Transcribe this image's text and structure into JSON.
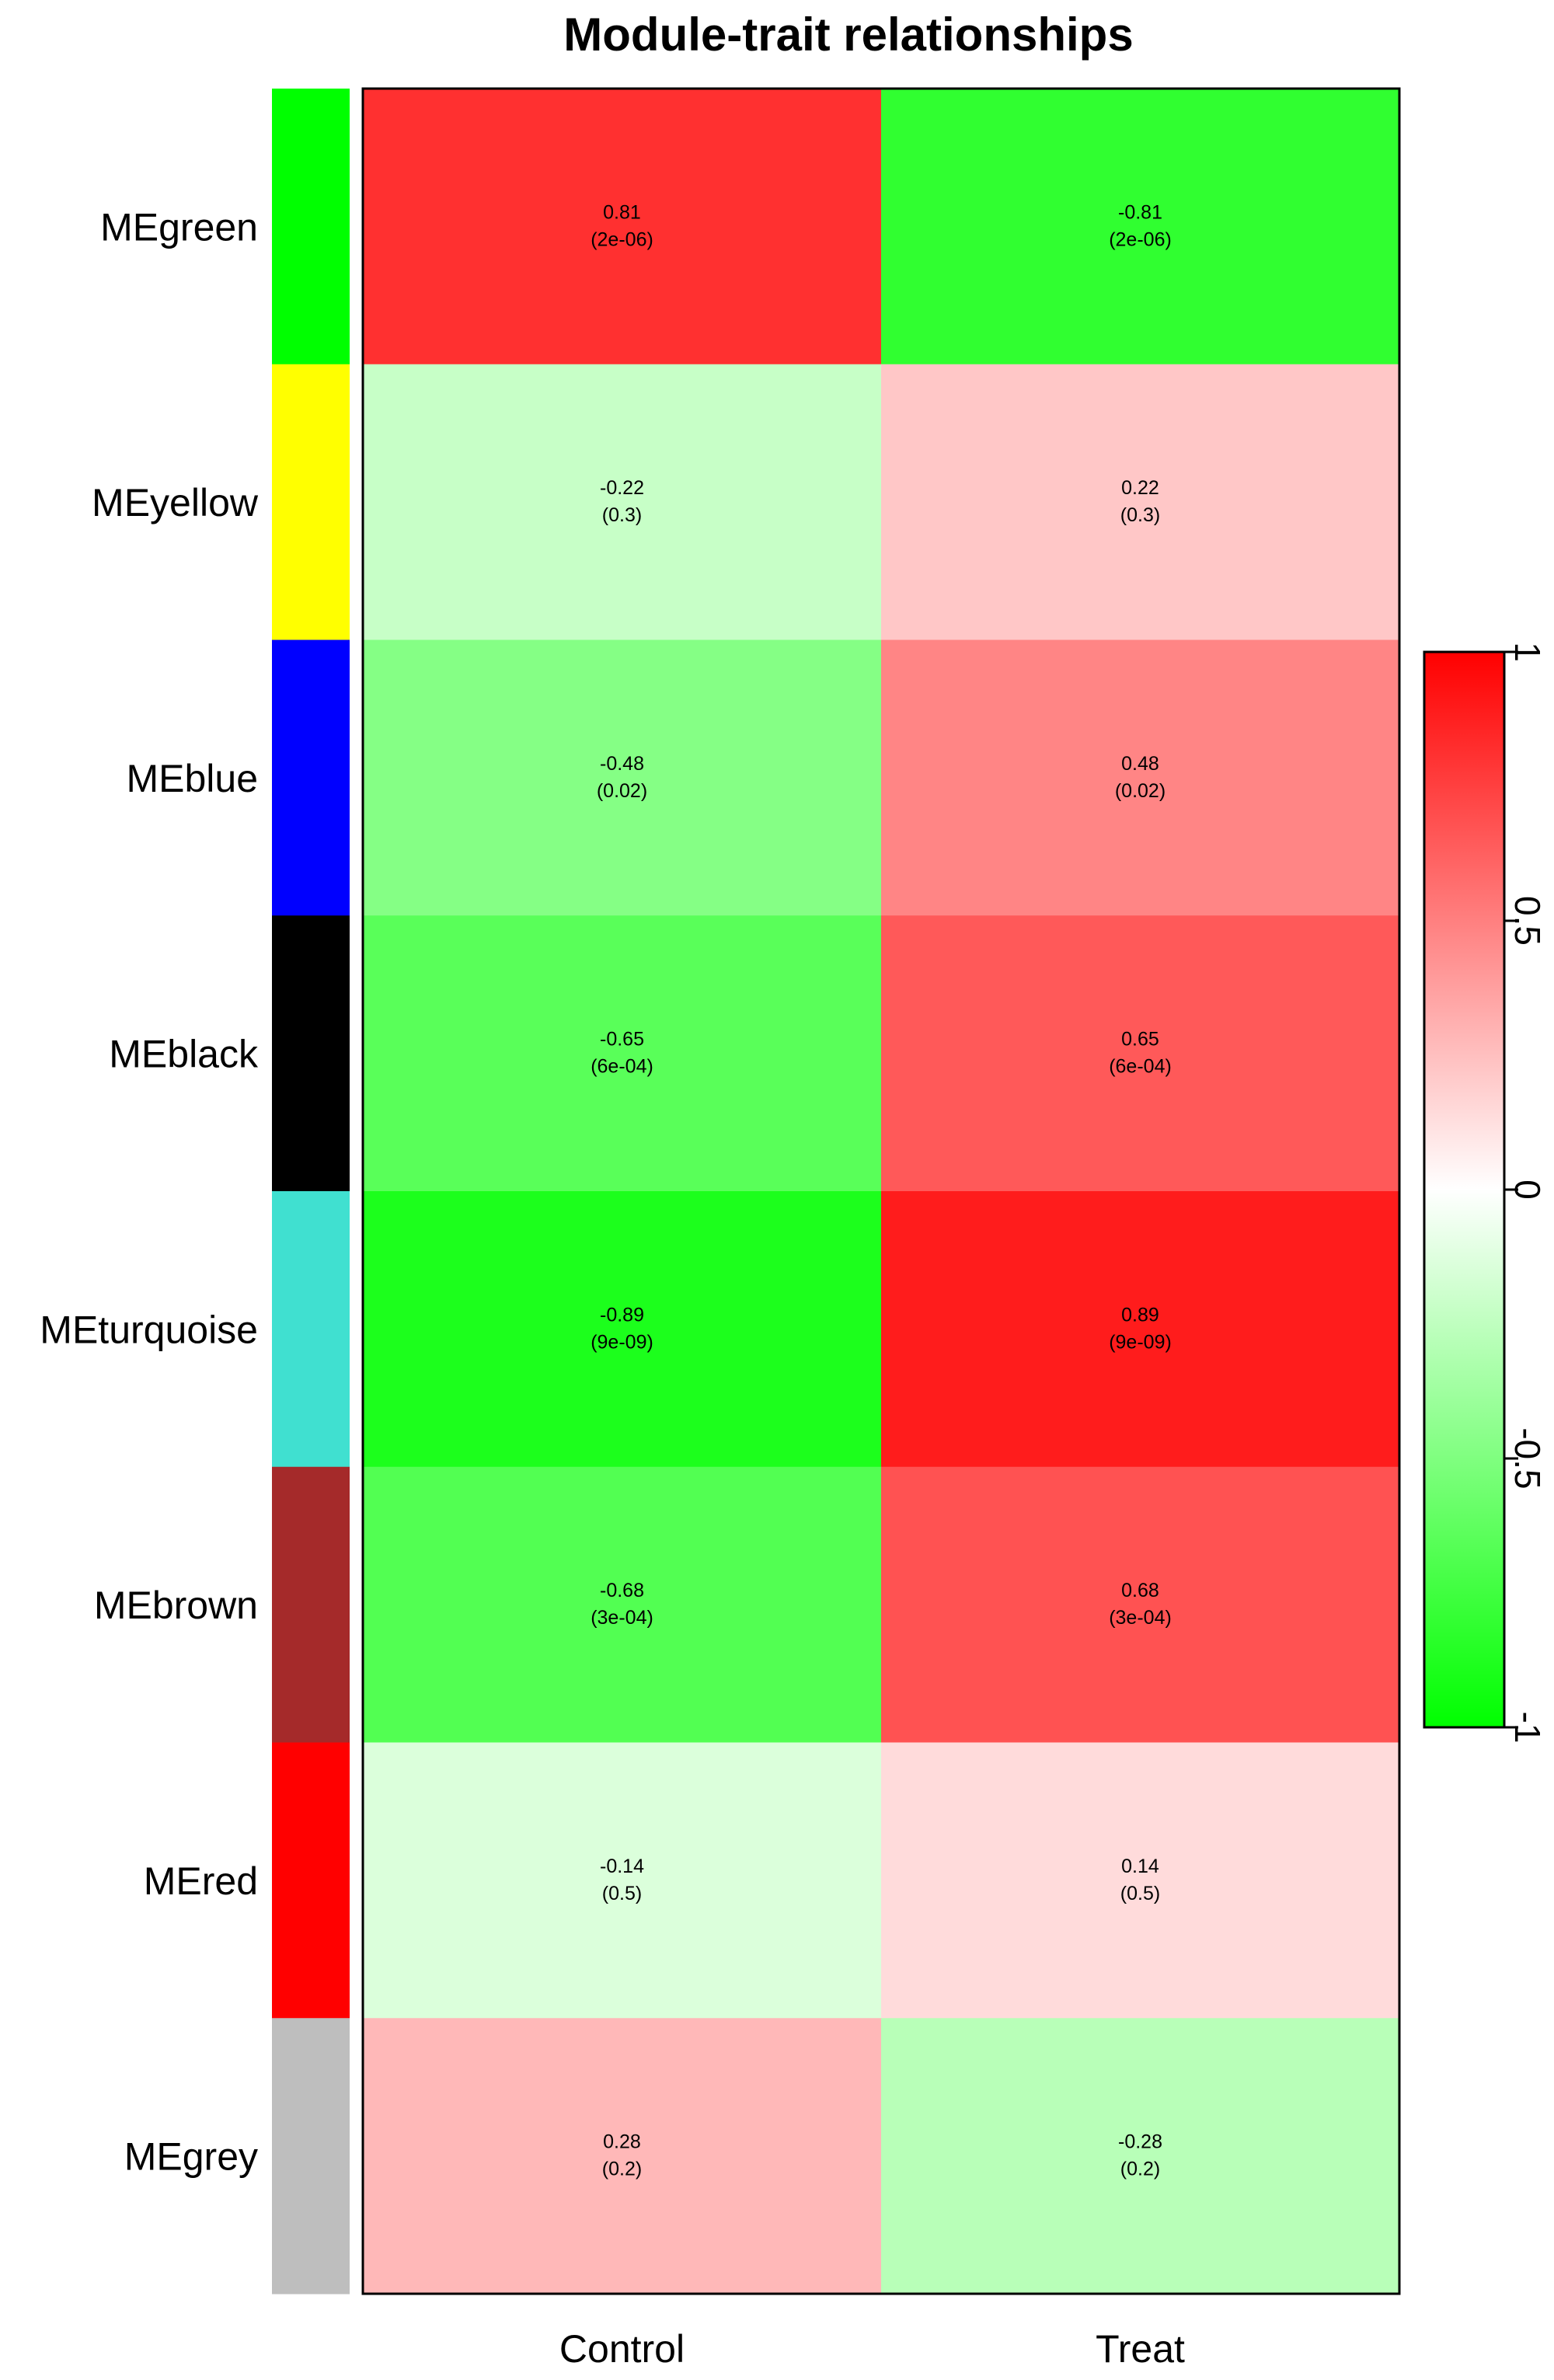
{
  "chart_data": {
    "type": "heatmap",
    "title": "Module-trait relationships",
    "columns": [
      "Control",
      "Treat"
    ],
    "rows": [
      {
        "name": "MEgreen",
        "module_color": "#00ff00",
        "values": [
          0.81,
          -0.81
        ],
        "pvalues": [
          "(2e-06)",
          "(2e-06)"
        ],
        "labels": [
          "0.81",
          "-0.81"
        ]
      },
      {
        "name": "MEyellow",
        "module_color": "#ffff00",
        "values": [
          -0.22,
          0.22
        ],
        "pvalues": [
          "(0.3)",
          "(0.3)"
        ],
        "labels": [
          "-0.22",
          "0.22"
        ]
      },
      {
        "name": "MEblue",
        "module_color": "#0000ff",
        "values": [
          -0.48,
          0.48
        ],
        "pvalues": [
          "(0.02)",
          "(0.02)"
        ],
        "labels": [
          "-0.48",
          "0.48"
        ]
      },
      {
        "name": "MEblack",
        "module_color": "#000000",
        "values": [
          -0.65,
          0.65
        ],
        "pvalues": [
          "(6e-04)",
          "(6e-04)"
        ],
        "labels": [
          "-0.65",
          "0.65"
        ]
      },
      {
        "name": "MEturquoise",
        "module_color": "#40e0d0",
        "values": [
          -0.89,
          0.89
        ],
        "pvalues": [
          "(9e-09)",
          "(9e-09)"
        ],
        "labels": [
          "-0.89",
          "0.89"
        ]
      },
      {
        "name": "MEbrown",
        "module_color": "#a52a2a",
        "values": [
          -0.68,
          0.68
        ],
        "pvalues": [
          "(3e-04)",
          "(3e-04)"
        ],
        "labels": [
          "-0.68",
          "0.68"
        ]
      },
      {
        "name": "MEred",
        "module_color": "#ff0000",
        "values": [
          -0.14,
          0.14
        ],
        "pvalues": [
          "(0.5)",
          "(0.5)"
        ],
        "labels": [
          "-0.14",
          "0.14"
        ]
      },
      {
        "name": "MEgrey",
        "module_color": "#bebebe",
        "values": [
          0.28,
          -0.28
        ],
        "pvalues": [
          "(0.2)",
          "(0.2)"
        ],
        "labels": [
          "0.28",
          "-0.28"
        ]
      }
    ],
    "color_scale": {
      "min": -1,
      "max": 1,
      "low_color": "#00ff00",
      "mid_color": "#ffffff",
      "high_color": "#ff0000",
      "ticks": [
        1,
        0.5,
        0,
        -0.5,
        -1
      ],
      "tick_labels": [
        "1",
        "0.5",
        "0",
        "-0.5",
        "-1"
      ],
      "placement": "right"
    }
  }
}
